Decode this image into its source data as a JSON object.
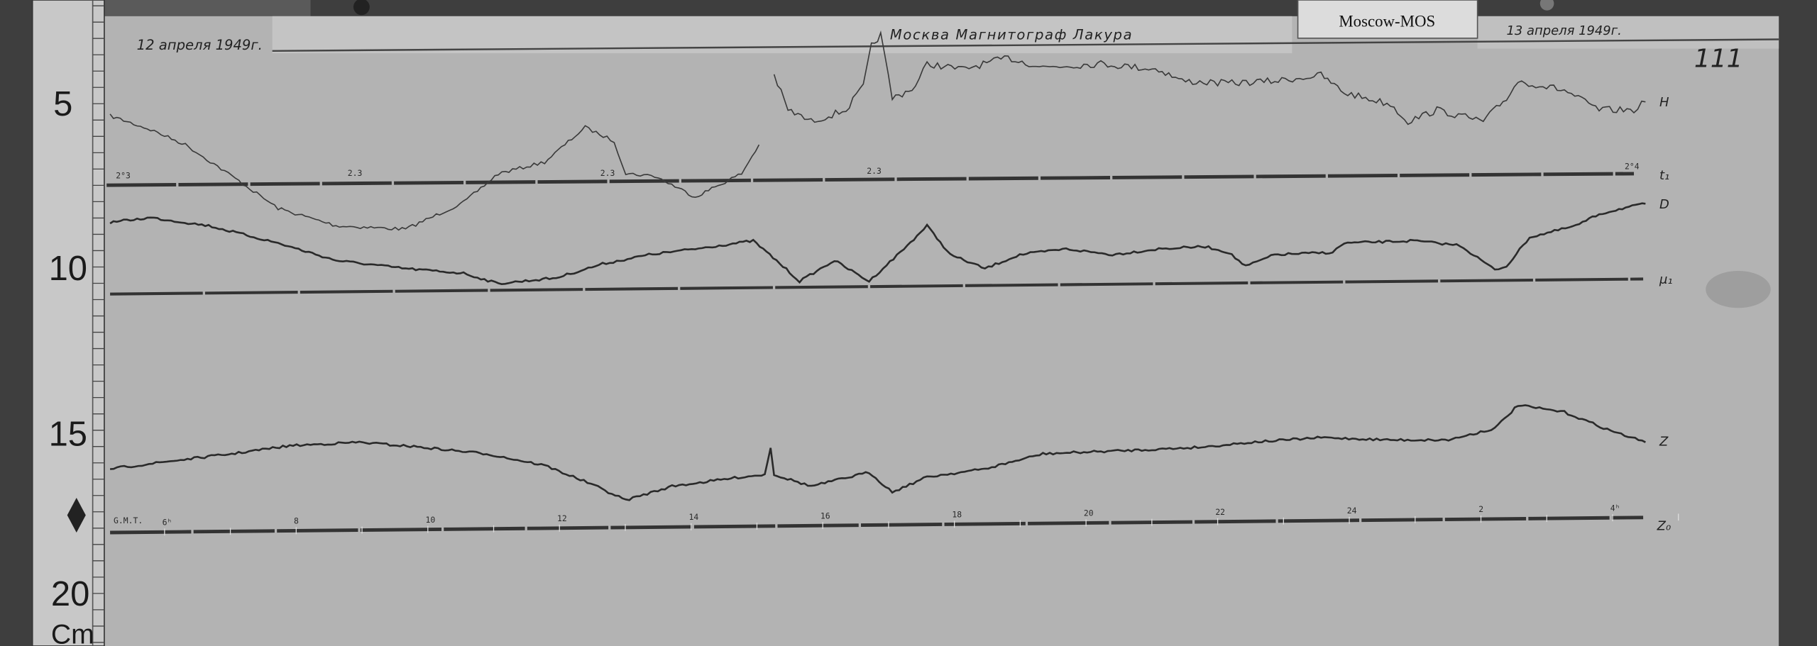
{
  "header": {
    "date_start": "12 апреля 1949г.",
    "title": "Москва  Магнитограф  Лакура",
    "date_end": "13 апреля 1949г.",
    "sheet_number": "111"
  },
  "station_tag": "Moscow-MOS",
  "ruler": {
    "marks": [
      "5",
      "10",
      "15",
      "20"
    ],
    "unit": "Cm"
  },
  "traces": {
    "H": {
      "label": "H",
      "baseline_label": "t₁",
      "baseline_marks": [
        "2°3",
        "2.3",
        "2.3",
        "2.3",
        "2°4"
      ]
    },
    "D": {
      "label": "D",
      "baseline_label": "μ₁"
    },
    "Z": {
      "label": "Z",
      "baseline_label": "Z₀"
    }
  },
  "time_axis": {
    "label": "G.M.T.",
    "ticks": [
      "6ʰ",
      "8",
      "10",
      "12",
      "14",
      "16",
      "18",
      "20",
      "22",
      "24",
      "2",
      "4ʰ"
    ]
  },
  "colors": {
    "paper": "#b4b4b4",
    "ink": "#2b2b2b",
    "background": "#3a3a3a"
  }
}
